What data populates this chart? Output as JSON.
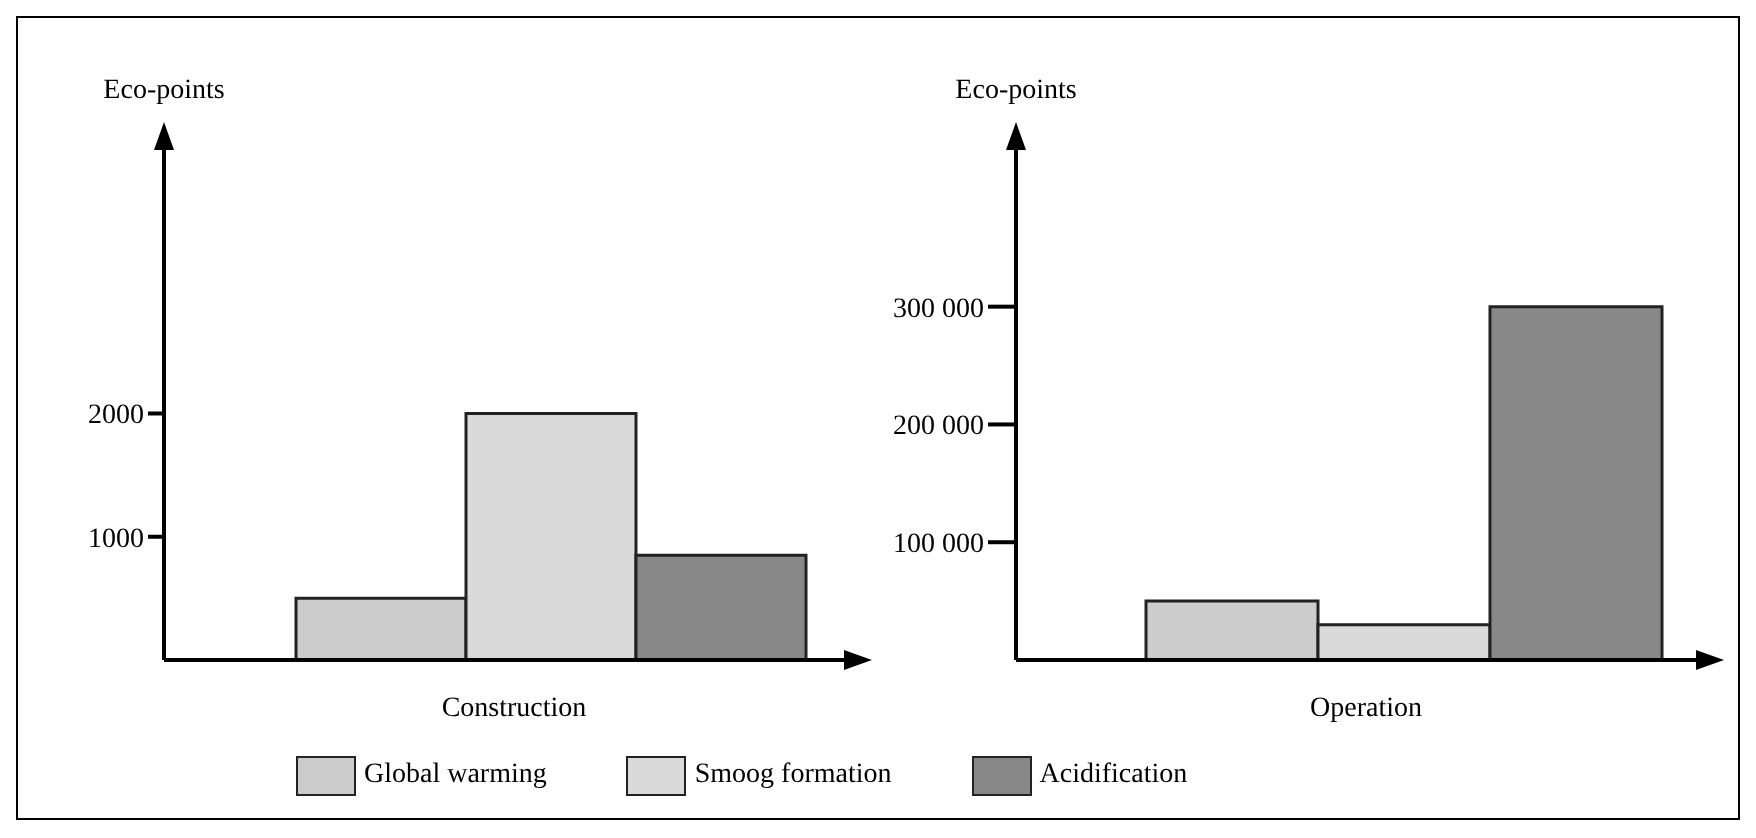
{
  "chart_data": [
    {
      "type": "bar",
      "xlabel": "Construction",
      "ylabel": "Eco-points",
      "categories": [
        null
      ],
      "series": [
        {
          "name": "Global warming",
          "color": "#cccccc",
          "values": [
            500
          ]
        },
        {
          "name": "Smoog formation",
          "color": "#dadada",
          "values": [
            2000
          ]
        },
        {
          "name": "Acidification",
          "color": "#888888",
          "values": [
            850
          ]
        }
      ],
      "ylim": [
        0,
        4300
      ],
      "yticks": [
        1000,
        2000
      ],
      "tick_labels": "y",
      "legend": "bottom",
      "grid": false
    },
    {
      "type": "bar",
      "xlabel": "Operation",
      "ylabel": "Eco-points",
      "categories": [
        null
      ],
      "series": [
        {
          "name": "Global warming",
          "color": "#cccccc",
          "values": [
            50000
          ]
        },
        {
          "name": "Smoog formation",
          "color": "#dadada",
          "values": [
            30000
          ]
        },
        {
          "name": "Acidification",
          "color": "#888888",
          "values": [
            300000
          ]
        }
      ],
      "ylim": [
        0,
        450000
      ],
      "yticks": [
        {
          "value": 100000,
          "label": "100 000"
        },
        {
          "value": 200000,
          "label": "200 000"
        },
        {
          "value": 300000,
          "label": "300 000"
        }
      ],
      "tick_labels": "y",
      "legend": "bottom",
      "grid": false
    }
  ]
}
